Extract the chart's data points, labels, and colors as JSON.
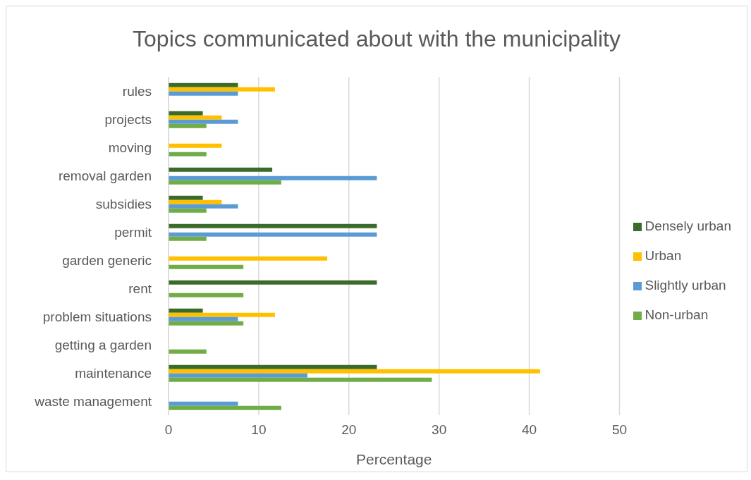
{
  "chart_data": {
    "type": "bar",
    "orientation": "horizontal",
    "title": "Topics communicated about with the municipality",
    "xlabel": "Percentage",
    "categories": [
      "rules",
      "projects",
      "moving",
      "removal garden",
      "subsidies",
      "permit",
      "garden generic",
      "rent",
      "problem situations",
      "getting a garden",
      "maintenance",
      "waste management"
    ],
    "series": [
      {
        "name": "Densely urban",
        "color": "#3b6b2a",
        "values": [
          7.7,
          3.8,
          null,
          11.5,
          3.8,
          23.1,
          null,
          23.1,
          3.8,
          null,
          23.1,
          null
        ]
      },
      {
        "name": "Urban",
        "color": "#ffc000",
        "values": [
          11.8,
          5.9,
          5.9,
          null,
          5.9,
          null,
          17.6,
          null,
          11.8,
          null,
          41.2,
          null
        ]
      },
      {
        "name": "Slightly urban",
        "color": "#5b9bd5",
        "values": [
          7.7,
          7.7,
          null,
          23.1,
          7.7,
          23.1,
          null,
          null,
          7.7,
          null,
          15.4,
          7.7
        ]
      },
      {
        "name": "Non-urban",
        "color": "#70ad47",
        "values": [
          null,
          4.2,
          4.2,
          12.5,
          4.2,
          4.2,
          8.3,
          8.3,
          8.3,
          4.2,
          29.2,
          12.5
        ]
      }
    ],
    "xlim": [
      0,
      50
    ],
    "xticks": [
      0,
      10,
      20,
      30,
      40,
      50
    ],
    "grid": "x",
    "legend": "right"
  }
}
